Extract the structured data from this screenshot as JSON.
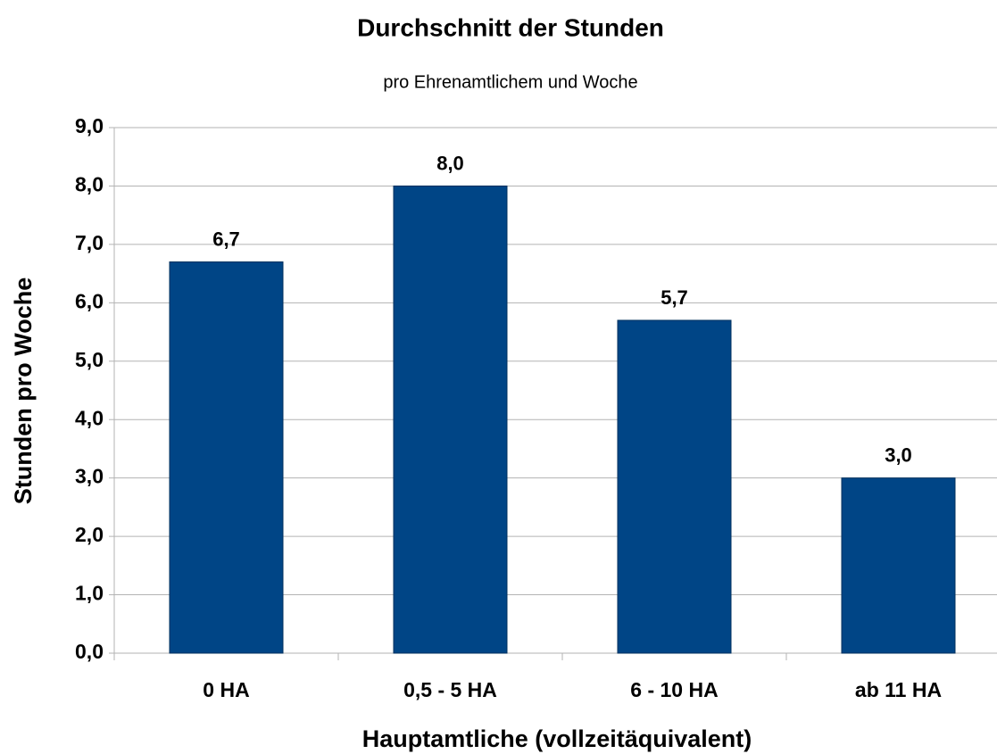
{
  "chart_data": {
    "type": "bar",
    "title": "Durchschnitt der Stunden",
    "subtitle": "pro Ehrenamtlichem und Woche",
    "x_label": "Hauptamtliche (vollzeitäquivalent)",
    "y_label": "Stunden pro Woche",
    "categories": [
      "0 HA",
      "0,5 - 5 HA",
      "6 - 10 HA",
      "ab 11 HA"
    ],
    "values": [
      6.7,
      8.0,
      5.7,
      3.0
    ],
    "value_labels": [
      "6,7",
      "8,0",
      "5,7",
      "3,0"
    ],
    "color": "#004586",
    "ylim": [
      0,
      9
    ],
    "yticks": [
      {
        "value": 0,
        "label": "0,0"
      },
      {
        "value": 1,
        "label": "1,0"
      },
      {
        "value": 2,
        "label": "2,0"
      },
      {
        "value": 3,
        "label": "3,0"
      },
      {
        "value": 4,
        "label": "4,0"
      },
      {
        "value": 5,
        "label": "5,0"
      },
      {
        "value": 6,
        "label": "6,0"
      },
      {
        "value": 7,
        "label": "7,0"
      },
      {
        "value": 8,
        "label": "8,0"
      },
      {
        "value": 9,
        "label": "9,0"
      }
    ],
    "grid": true
  }
}
